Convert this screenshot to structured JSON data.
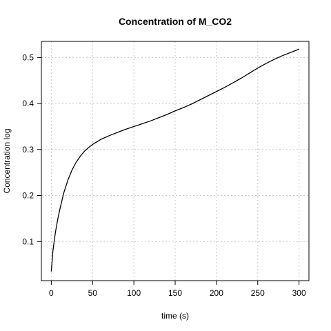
{
  "chart_data": {
    "type": "line",
    "title": "Concentration of M_CO2",
    "xlabel": "time (s)",
    "ylabel": "Concentration log",
    "xlim": [
      -12,
      312
    ],
    "ylim": [
      0.015,
      0.535
    ],
    "x_ticks": [
      0,
      50,
      100,
      150,
      200,
      250,
      300
    ],
    "y_ticks": [
      0.1,
      0.2,
      0.3,
      0.4,
      0.5
    ],
    "grid": true,
    "grid_style": "dotted",
    "line_color": "#000000",
    "series": [
      {
        "x": [
          0,
          2,
          5,
          8,
          10,
          15,
          20,
          25,
          30,
          35,
          40,
          45,
          50,
          60,
          70,
          80,
          90,
          100,
          110,
          120,
          130,
          140,
          150,
          160,
          170,
          180,
          190,
          200,
          210,
          220,
          230,
          240,
          250,
          260,
          270,
          280,
          290,
          300
        ],
        "y": [
          0.035,
          0.08,
          0.12,
          0.15,
          0.167,
          0.205,
          0.233,
          0.255,
          0.272,
          0.285,
          0.296,
          0.304,
          0.311,
          0.322,
          0.33,
          0.337,
          0.344,
          0.35,
          0.356,
          0.362,
          0.369,
          0.376,
          0.384,
          0.391,
          0.399,
          0.408,
          0.417,
          0.426,
          0.435,
          0.445,
          0.455,
          0.466,
          0.477,
          0.487,
          0.496,
          0.504,
          0.511,
          0.518
        ]
      }
    ]
  }
}
